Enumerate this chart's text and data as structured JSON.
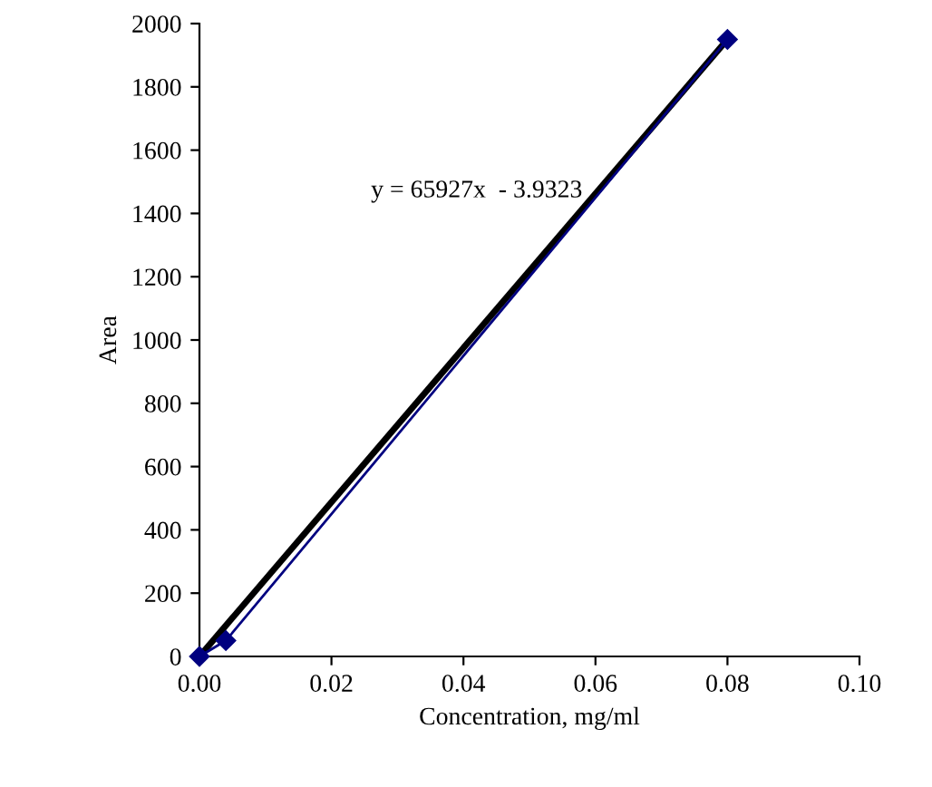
{
  "chart_data": {
    "type": "line",
    "xlabel": "Concentration, mg/ml",
    "ylabel": "Area",
    "series": [
      {
        "color": "#000080",
        "marker": "diamond",
        "x": [
          0,
          0.004,
          0.08
        ],
        "values": [
          0,
          50,
          1950
        ]
      },
      {
        "type": "line",
        "color": "#000000",
        "marker": "none",
        "x": [
          0,
          0.08
        ],
        "values": [
          0,
          1950
        ]
      }
    ],
    "annotations": [
      "y = 65927x  - 3.9323"
    ],
    "xlim": [
      0,
      0.1
    ],
    "xticks": [
      {
        "value": 0,
        "label": "0.00"
      },
      0.02,
      0.04,
      0.06,
      0.08,
      {
        "value": 0.1,
        "label": "0.10"
      }
    ],
    "ylim": [
      0,
      2000
    ],
    "yticks": [
      0,
      200,
      400,
      600,
      800,
      1000,
      1200,
      1400,
      1600,
      1800,
      2000
    ],
    "grid": false,
    "legend": false
  }
}
